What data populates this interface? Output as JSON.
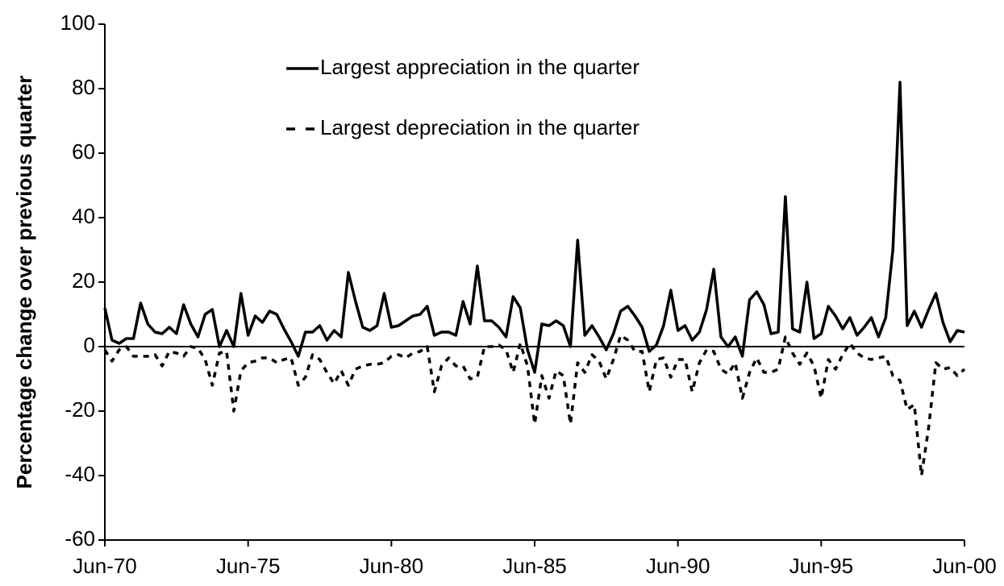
{
  "chart_data": {
    "type": "line",
    "ylabel": "Percentage change over previous quarter",
    "categories": [
      "Jun-70",
      null,
      null,
      null,
      null,
      null,
      null,
      null,
      null,
      null,
      null,
      null,
      null,
      null,
      null,
      null,
      null,
      null,
      null,
      null,
      "Jun-75",
      null,
      null,
      null,
      null,
      null,
      null,
      null,
      null,
      null,
      null,
      null,
      null,
      null,
      null,
      null,
      null,
      null,
      null,
      null,
      "Jun-80",
      null,
      null,
      null,
      null,
      null,
      null,
      null,
      null,
      null,
      null,
      null,
      null,
      null,
      null,
      null,
      null,
      null,
      null,
      null,
      "Jun-85",
      null,
      null,
      null,
      null,
      null,
      null,
      null,
      null,
      null,
      null,
      null,
      null,
      null,
      null,
      null,
      null,
      null,
      null,
      null,
      "Jun-90",
      null,
      null,
      null,
      null,
      null,
      null,
      null,
      null,
      null,
      null,
      null,
      null,
      null,
      null,
      null,
      null,
      null,
      null,
      null,
      "Jun-95",
      null,
      null,
      null,
      null,
      null,
      null,
      null,
      null,
      null,
      null,
      null,
      null,
      null,
      null,
      null,
      null,
      null,
      null,
      null,
      "Jun-00"
    ],
    "series": [
      {
        "name": "Largest appreciation in the quarter",
        "color": "#000000",
        "style": "solid",
        "values": [
          12,
          2,
          1,
          2.5,
          2.5,
          13.5,
          7,
          4.5,
          4,
          6,
          4,
          13,
          7,
          3,
          10,
          11.5,
          0,
          5,
          0,
          16.5,
          3.5,
          9.5,
          7.5,
          11,
          10,
          5.5,
          1.5,
          -3,
          4.5,
          4.5,
          6.5,
          2,
          5,
          3,
          23,
          14,
          6,
          5,
          6.5,
          16.5,
          6,
          6.5,
          8,
          9.5,
          10,
          12.5,
          3.5,
          4.5,
          4.5,
          3.5,
          14,
          7,
          25,
          8,
          8,
          6,
          3,
          15.5,
          12,
          -1,
          -8,
          7,
          6.5,
          8,
          6.5,
          0,
          33,
          3.5,
          6.5,
          3,
          -1,
          4,
          11,
          12.5,
          9.5,
          6,
          -1.5,
          0.5,
          6.5,
          17.5,
          5,
          6.5,
          2,
          4.5,
          11.5,
          24,
          3,
          0,
          3,
          -3,
          14.5,
          17,
          13,
          4,
          4.5,
          46.5,
          5.5,
          4.5,
          20,
          2.5,
          4,
          12.5,
          9.5,
          5.5,
          9,
          3.5,
          6,
          9,
          3,
          9,
          30,
          82,
          6.5,
          11,
          6,
          11.5,
          16.5,
          7.5,
          1.5,
          5,
          4.5
        ]
      },
      {
        "name": "Largest depreciation in the quarter",
        "color": "#000000",
        "style": "dashed",
        "values": [
          -1,
          -4.5,
          -1,
          0,
          -3,
          -3,
          -3,
          -2.5,
          -6,
          -1.5,
          -2,
          -3,
          0,
          -0.5,
          -4,
          -12,
          -2,
          -1.5,
          -20,
          -7.5,
          -5,
          -4.5,
          -3.5,
          -3.5,
          -5,
          -4,
          -3.5,
          -12,
          -9.5,
          -2.5,
          -4,
          -8,
          -11.5,
          -7.5,
          -12,
          -7,
          -6,
          -5.5,
          -5.5,
          -5,
          -3,
          -2.5,
          -3.5,
          -2,
          -1.5,
          0,
          -14,
          -6,
          -3.5,
          -6,
          -6,
          -10,
          -9.5,
          0,
          0,
          0.5,
          -1,
          -8,
          1,
          -6,
          -24,
          -9,
          -16,
          -7.5,
          -9,
          -24,
          -5,
          -8,
          -2.5,
          -4.5,
          -10,
          -4,
          3.5,
          2,
          -1.5,
          -1.5,
          -14,
          -4,
          -3.5,
          -9.5,
          -4,
          -4,
          -14,
          -5,
          -1,
          -1.5,
          -7,
          -8.5,
          -5,
          -16,
          -8,
          -3.5,
          -8,
          -8,
          -7,
          3,
          -2,
          -5.5,
          -2,
          -6,
          -16,
          -4,
          -7,
          -2.5,
          1,
          -2,
          -3.5,
          -4,
          -3.5,
          -3,
          -9,
          -10.5,
          -19.5,
          -18,
          -40,
          -25,
          -5,
          -7,
          -6.5,
          -9,
          -7
        ]
      }
    ],
    "ylim": [
      -60,
      100
    ],
    "yticks": [
      -60,
      -40,
      -20,
      0,
      20,
      40,
      60,
      80,
      100
    ],
    "grid": false,
    "zero_line": true,
    "legend": "top"
  }
}
